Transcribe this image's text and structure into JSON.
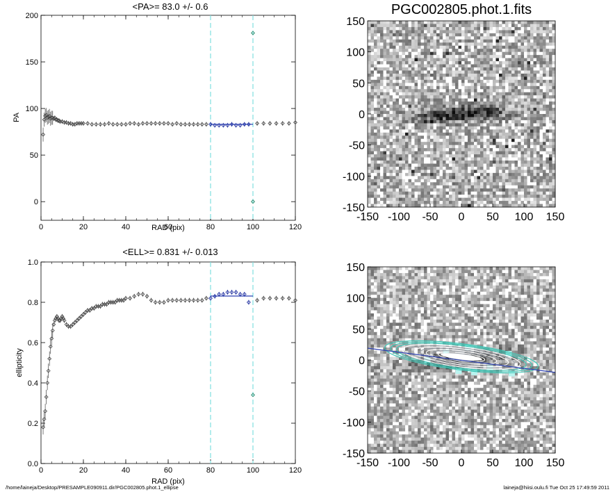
{
  "footer": {
    "left": "/home/laineja/Desktop/PRESAMPLE090911.dir/PGC002805.phot.1_ellipse",
    "right": "laineja@hiisi.oulu.fi  Tue Oct 25 17:49:59 2011"
  },
  "chart_data": [
    {
      "id": "pa",
      "type": "scatter",
      "title": "<PA>=  83.0 +/-   0.6",
      "xlabel": "RAD (pix)",
      "ylabel": "PA",
      "xlim": [
        0,
        120
      ],
      "ylim": [
        -20,
        200
      ],
      "xticks": [
        0,
        20,
        40,
        60,
        80,
        100,
        120
      ],
      "yticks": [
        0,
        50,
        100,
        150,
        200
      ],
      "vlines": [
        80,
        100
      ],
      "fit": {
        "x": [
          80,
          100
        ],
        "y": 83.0
      },
      "outliers": [
        {
          "x": 100,
          "y": 181
        },
        {
          "x": 100,
          "y": 0
        }
      ],
      "x": [
        1,
        1.5,
        2,
        2.5,
        3,
        3.5,
        4,
        4.5,
        5,
        5.5,
        6,
        6.5,
        7,
        7.5,
        8,
        8.5,
        9,
        10,
        11,
        12,
        13,
        14,
        15,
        16,
        17,
        18,
        19,
        20,
        22,
        24,
        26,
        28,
        30,
        32,
        34,
        36,
        38,
        40,
        42,
        44,
        46,
        48,
        50,
        52,
        54,
        56,
        58,
        60,
        62,
        64,
        66,
        68,
        70,
        72,
        74,
        76,
        78,
        80,
        82,
        84,
        86,
        88,
        90,
        92,
        94,
        96,
        98,
        102,
        105,
        108,
        111,
        114,
        117,
        120
      ],
      "y": [
        72,
        88,
        92,
        93,
        90,
        91,
        92,
        89,
        90,
        90,
        89,
        90,
        88,
        88,
        87,
        87,
        86,
        86,
        85,
        85,
        84,
        84,
        83,
        83,
        84,
        84,
        84,
        84,
        84,
        83,
        83,
        83,
        83,
        84,
        83,
        83,
        83,
        83,
        84,
        84,
        83,
        84,
        84,
        84,
        84,
        84,
        84,
        84,
        83,
        84,
        83,
        83,
        83,
        83,
        83,
        83,
        83,
        83,
        82,
        82,
        82,
        82,
        83,
        82,
        82,
        83,
        83,
        84,
        84,
        84,
        84,
        84,
        84,
        85
      ]
    },
    {
      "id": "ell",
      "type": "scatter",
      "title": "<ELL>= 0.831 +/-  0.013",
      "xlabel": "RAD (pix)",
      "ylabel": "ellipticity",
      "xlim": [
        0,
        120
      ],
      "ylim": [
        0,
        1.0
      ],
      "xticks": [
        0,
        20,
        40,
        60,
        80,
        100,
        120
      ],
      "yticks": [
        0.0,
        0.2,
        0.4,
        0.6,
        0.8,
        1.0
      ],
      "vlines": [
        80,
        100
      ],
      "fit": {
        "x": [
          80,
          100
        ],
        "y": 0.831
      },
      "outliers": [
        {
          "x": 100,
          "y": 0.34
        }
      ],
      "x": [
        1,
        1.5,
        2,
        2.5,
        3,
        3.5,
        4,
        4.5,
        5,
        5.5,
        6,
        6.5,
        7,
        7.5,
        8,
        8.5,
        9,
        9.5,
        10,
        10.5,
        11,
        12,
        13,
        14,
        15,
        16,
        17,
        18,
        19,
        20,
        21,
        22,
        23,
        24,
        25,
        26,
        27,
        28,
        29,
        30,
        31,
        32,
        33,
        34,
        35,
        36,
        37,
        38,
        39,
        40,
        42,
        44,
        46,
        48,
        50,
        52,
        54,
        56,
        58,
        60,
        62,
        64,
        66,
        68,
        70,
        72,
        74,
        76,
        78,
        80,
        82,
        84,
        86,
        88,
        90,
        92,
        94,
        96,
        98,
        102,
        105,
        108,
        111,
        114,
        117,
        120
      ],
      "y": [
        0.18,
        0.22,
        0.26,
        0.33,
        0.4,
        0.46,
        0.52,
        0.58,
        0.62,
        0.66,
        0.69,
        0.71,
        0.72,
        0.73,
        0.72,
        0.71,
        0.71,
        0.72,
        0.73,
        0.72,
        0.71,
        0.69,
        0.68,
        0.68,
        0.69,
        0.7,
        0.71,
        0.72,
        0.73,
        0.74,
        0.75,
        0.76,
        0.76,
        0.77,
        0.77,
        0.78,
        0.78,
        0.78,
        0.79,
        0.79,
        0.79,
        0.8,
        0.8,
        0.8,
        0.8,
        0.81,
        0.81,
        0.81,
        0.81,
        0.82,
        0.82,
        0.83,
        0.84,
        0.84,
        0.83,
        0.81,
        0.8,
        0.8,
        0.8,
        0.81,
        0.81,
        0.81,
        0.81,
        0.81,
        0.81,
        0.81,
        0.81,
        0.81,
        0.82,
        0.82,
        0.83,
        0.84,
        0.84,
        0.85,
        0.85,
        0.85,
        0.84,
        0.84,
        0.8,
        0.81,
        0.82,
        0.82,
        0.82,
        0.82,
        0.82,
        0.81
      ]
    },
    {
      "id": "img1",
      "type": "heatmap",
      "title": "PGC002805.phot.1.fits",
      "xlim": [
        -150,
        150
      ],
      "ylim": [
        -150,
        150
      ],
      "xticks": [
        -150,
        -100,
        -50,
        0,
        50,
        100,
        150
      ],
      "yticks": [
        -150,
        -100,
        -50,
        0,
        50,
        100,
        150
      ],
      "galaxy_pa_deg": 83.0,
      "galaxy_ellipticity": 0.831
    },
    {
      "id": "img2",
      "type": "heatmap",
      "title": "",
      "xlim": [
        -150,
        150
      ],
      "ylim": [
        -150,
        150
      ],
      "xticks": [
        -150,
        -100,
        -50,
        0,
        50,
        100,
        150
      ],
      "yticks": [
        -150,
        -100,
        -50,
        0,
        50,
        100,
        150
      ],
      "ellipse_count": 12,
      "major_axis_line_color": "#2b3fb0",
      "ellipse_colors": [
        "#ffffff",
        "#9aa0a8",
        "#3fc7b7"
      ]
    }
  ],
  "colors": {
    "points": "#444444",
    "fit_points": "#1f2f9f",
    "fit_line": "#2b3fb0",
    "vline": "#7fe0e0",
    "outlier": "#2f8a6a"
  }
}
